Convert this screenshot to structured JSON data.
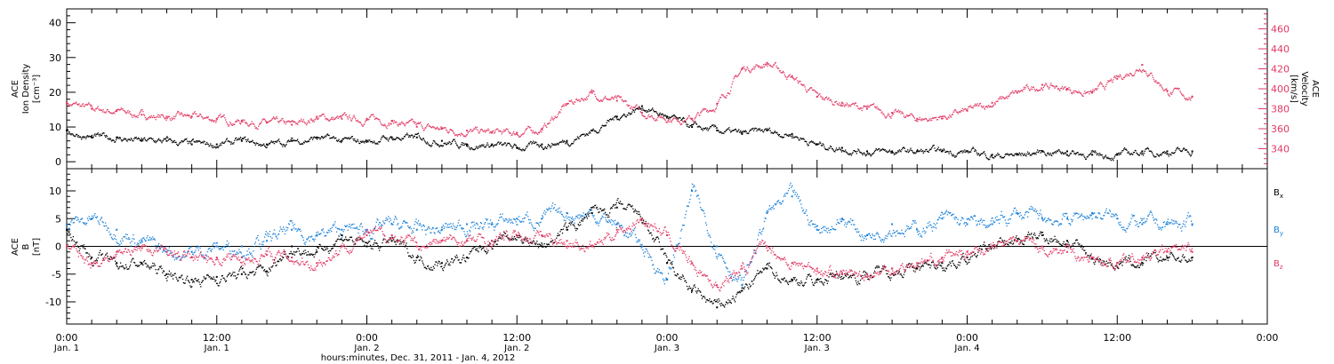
{
  "chart_data": [
    {
      "type": "scatter",
      "panel": "top",
      "ylabel_left": [
        "ACE",
        "Ion Density",
        "[cm⁻³]"
      ],
      "ylabel_right": [
        "ACE",
        "Velocity",
        "[km/s]"
      ],
      "ylim_left": [
        -2,
        44
      ],
      "ylim_right": [
        320,
        480
      ],
      "yticks_left": [
        0,
        10,
        20,
        30,
        40
      ],
      "yticks_right": [
        340,
        360,
        380,
        400,
        420,
        440,
        460
      ],
      "series": [
        {
          "axis": "left",
          "color": "#000000",
          "x": [
            0,
            2,
            4,
            6,
            8,
            10,
            12,
            14,
            16,
            18,
            20,
            22,
            24,
            26,
            28,
            30,
            32,
            34,
            36,
            38,
            40,
            42,
            44,
            46,
            48,
            50,
            52,
            54,
            56,
            58,
            60,
            62,
            64,
            66,
            68,
            70,
            72,
            74,
            76,
            78,
            80,
            82,
            84,
            86,
            88,
            90
          ],
          "values": [
            9,
            7,
            7,
            6,
            6,
            5,
            5,
            6,
            5,
            6,
            7,
            6,
            6,
            7,
            7,
            6,
            5,
            5,
            4,
            5,
            6,
            9,
            13,
            16,
            13,
            10,
            9,
            8,
            9,
            8,
            5,
            4,
            3,
            3,
            3,
            3,
            3,
            2,
            2,
            3,
            3,
            2,
            2,
            3,
            3,
            3
          ]
        },
        {
          "axis": "right",
          "color": "#e23a64",
          "x": [
            0,
            2,
            4,
            6,
            8,
            10,
            12,
            14,
            16,
            18,
            20,
            22,
            24,
            26,
            28,
            30,
            32,
            34,
            36,
            38,
            40,
            42,
            44,
            46,
            48,
            50,
            52,
            54,
            56,
            58,
            60,
            62,
            64,
            66,
            68,
            70,
            72,
            74,
            76,
            78,
            80,
            82,
            84,
            86,
            88,
            90
          ],
          "values": [
            386,
            380,
            378,
            374,
            372,
            372,
            370,
            368,
            366,
            364,
            372,
            370,
            370,
            368,
            362,
            360,
            358,
            356,
            356,
            360,
            385,
            396,
            388,
            376,
            372,
            370,
            385,
            420,
            426,
            412,
            392,
            386,
            380,
            376,
            370,
            372,
            378,
            386,
            396,
            404,
            400,
            396,
            410,
            424,
            398,
            392
          ]
        }
      ]
    },
    {
      "type": "scatter",
      "panel": "bottom",
      "ylabel_left": [
        "ACE",
        "B",
        "[nT]"
      ],
      "ylim": [
        -14,
        14
      ],
      "yticks": [
        -10,
        -5,
        0,
        5,
        10
      ],
      "zero_line": true,
      "legend": {
        "placement": "right",
        "entries": [
          "B",
          "B",
          "B"
        ],
        "subscripts": [
          "x",
          "y",
          "z"
        ],
        "colors": [
          "#000000",
          "#1a80d8",
          "#e23a64"
        ]
      },
      "series": [
        {
          "color": "#000000",
          "x": [
            0,
            2,
            4,
            6,
            8,
            10,
            12,
            14,
            16,
            18,
            20,
            22,
            24,
            26,
            28,
            30,
            32,
            34,
            36,
            38,
            40,
            42,
            44,
            46,
            48,
            50,
            52,
            54,
            56,
            58,
            60,
            62,
            64,
            66,
            68,
            70,
            72,
            74,
            76,
            78,
            80,
            82,
            84,
            86,
            88,
            90
          ],
          "values": [
            3,
            -2,
            -3,
            -3,
            -5,
            -6,
            -5.5,
            -5,
            -4.5,
            0,
            -1,
            2,
            0,
            1,
            -2,
            -3,
            -2,
            1,
            2,
            0,
            3,
            6,
            7,
            5,
            -3,
            -8,
            -11,
            -8,
            -4,
            -6,
            -6,
            -5,
            -5,
            -4,
            -4,
            -3,
            -2,
            0,
            1,
            2,
            1,
            -2,
            -3,
            -3,
            -2,
            -2
          ]
        },
        {
          "color": "#1a80d8",
          "x": [
            0,
            2,
            4,
            6,
            8,
            10,
            12,
            14,
            16,
            18,
            20,
            22,
            24,
            26,
            28,
            30,
            32,
            34,
            36,
            38,
            40,
            42,
            44,
            46,
            48,
            50,
            52,
            54,
            56,
            58,
            60,
            62,
            64,
            66,
            68,
            70,
            72,
            74,
            76,
            78,
            80,
            82,
            84,
            86,
            88,
            90
          ],
          "values": [
            4,
            5,
            3,
            1,
            -1,
            -1,
            0,
            0,
            1,
            3,
            2,
            3,
            3,
            4,
            3,
            3,
            4,
            4,
            5,
            5,
            6,
            6,
            4,
            0,
            -6,
            10,
            0,
            -7,
            6,
            9,
            3,
            5,
            2,
            4,
            3,
            5,
            4,
            4,
            6,
            5,
            5,
            6,
            5,
            4,
            4,
            4
          ]
        },
        {
          "color": "#e23a64",
          "x": [
            0,
            2,
            4,
            6,
            8,
            10,
            12,
            14,
            16,
            18,
            20,
            22,
            24,
            26,
            28,
            30,
            32,
            34,
            36,
            38,
            40,
            42,
            44,
            46,
            48,
            50,
            52,
            54,
            56,
            58,
            60,
            62,
            64,
            66,
            68,
            70,
            72,
            74,
            76,
            78,
            80,
            82,
            84,
            86,
            88,
            90
          ],
          "values": [
            0,
            -3,
            -1,
            0,
            -1,
            -2,
            -2,
            -2,
            -1.5,
            -2,
            -3,
            0,
            2,
            2,
            0,
            1,
            1,
            1,
            2,
            2,
            1,
            0,
            3,
            5,
            2,
            -3,
            -7,
            -4,
            0,
            -3,
            -4,
            -5,
            -5,
            -4,
            -3,
            -2,
            -1,
            0,
            1,
            0,
            -1,
            -2,
            -3,
            -2,
            -1,
            -1
          ]
        }
      ]
    }
  ],
  "x_axis": {
    "xlim": [
      0,
      96
    ],
    "major_ticks": [
      0,
      12,
      24,
      36,
      48,
      60,
      72,
      84
    ],
    "time_labels": [
      "0:00",
      "12:00",
      "0:00",
      "12:00",
      "0:00",
      "12:00",
      "0:00",
      "12:00",
      "0:00"
    ],
    "time_label_hours": [
      0,
      12,
      24,
      36,
      48,
      60,
      72,
      84,
      96
    ],
    "date_labels": [
      "Jan. 1",
      "Jan. 1",
      "Jan. 2",
      "Jan. 2",
      "Jan. 3",
      "Jan. 3",
      "Jan. 4"
    ],
    "date_label_hours": [
      0,
      12,
      24,
      36,
      48,
      60,
      72
    ],
    "xlabel": "hours:minutes, Dec. 31, 2011 - Jan.  4, 2012"
  },
  "colors": {
    "density": "#000000",
    "velocity": "#e23a64",
    "bx": "#000000",
    "by": "#1a80d8",
    "bz": "#e23a64",
    "frame": "#000000"
  }
}
